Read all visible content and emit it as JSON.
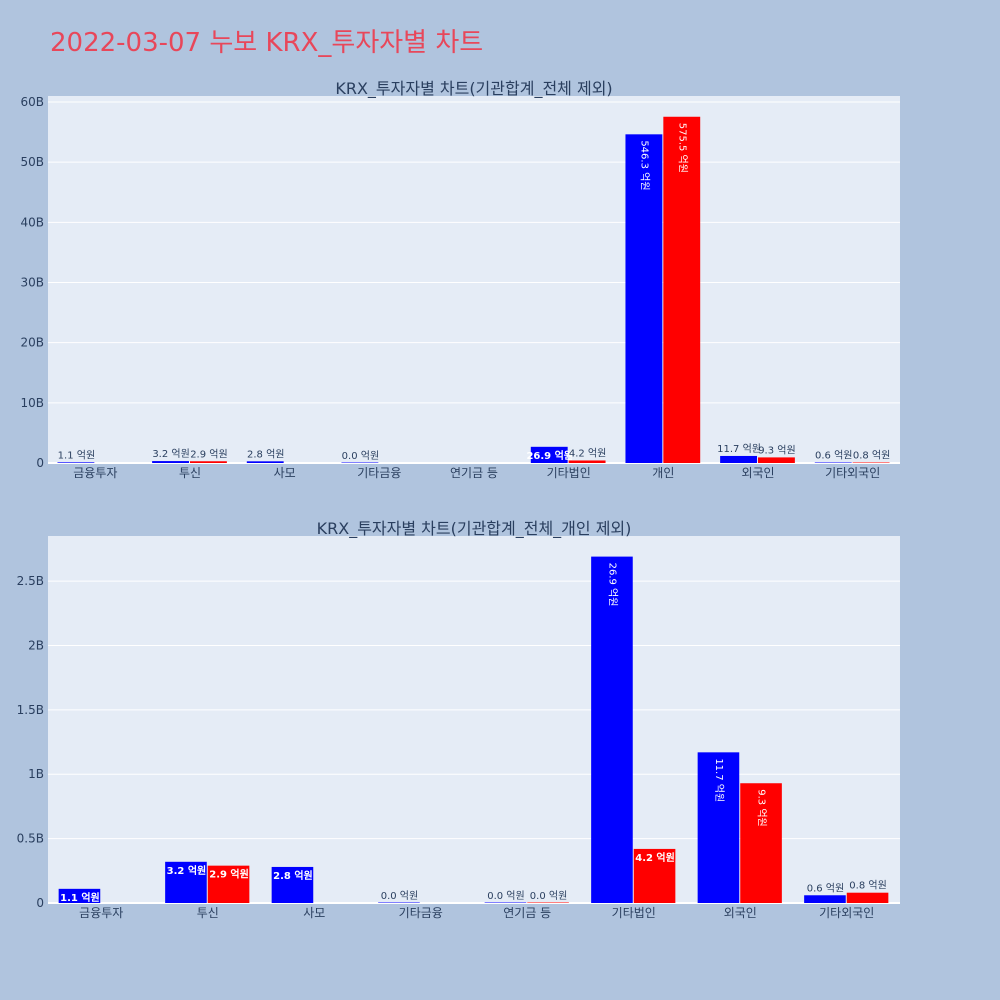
{
  "page": {
    "title": "2022-03-07 누보 KRX_투자자별 차트"
  },
  "colors": {
    "buy": "#0000ff",
    "sell": "#ff0000",
    "plot_bg": "#e5ecf6",
    "page_bg": "#b0c4de",
    "title": "#e8475a"
  },
  "chart_data": [
    {
      "type": "bar",
      "title": "KRX_투자자별 차트(기관합계_전체 제외)",
      "categories": [
        "금융투자",
        "투신",
        "사모",
        "기타금융",
        "연기금 등",
        "기타법인",
        "개인",
        "외국인",
        "기타외국인"
      ],
      "series": [
        {
          "color": "#0000ff",
          "values": [
            110000000,
            320000000,
            280000000,
            0,
            null,
            2690000000,
            54630000000,
            1170000000,
            60000000
          ],
          "labels": [
            "1.1 억원",
            "3.2 억원",
            "2.8 억원",
            "0.0 억원",
            "",
            "26.9 억원",
            "546.3 억원",
            "11.7 억원",
            "0.6 억원"
          ]
        },
        {
          "color": "#ff0000",
          "values": [
            null,
            290000000,
            null,
            null,
            null,
            420000000,
            57550000000,
            930000000,
            80000000
          ],
          "labels": [
            "",
            "2.9 억원",
            "",
            "",
            "",
            "4.2 억원",
            "575.5 억원",
            "9.3 억원",
            "0.8 억원"
          ]
        }
      ],
      "ylim": [
        0,
        61000000000
      ],
      "yticks": [
        0,
        10000000000,
        20000000000,
        30000000000,
        40000000000,
        50000000000,
        60000000000
      ],
      "ytick_labels": [
        "0",
        "10B",
        "20B",
        "30B",
        "40B",
        "50B",
        "60B"
      ],
      "grid": true
    },
    {
      "type": "bar",
      "title": "KRX_투자자별 차트(기관합계_전체_개인 제외)",
      "categories": [
        "금융투자",
        "투신",
        "사모",
        "기타금융",
        "연기금 등",
        "기타법인",
        "외국인",
        "기타외국인"
      ],
      "series": [
        {
          "color": "#0000ff",
          "values": [
            110000000,
            320000000,
            280000000,
            0,
            0,
            2690000000,
            1170000000,
            60000000
          ],
          "labels": [
            "1.1 억원",
            "3.2 억원",
            "2.8 억원",
            "0.0 억원",
            "0.0 억원",
            "26.9 억원",
            "11.7 억원",
            "0.6 억원"
          ]
        },
        {
          "color": "#ff0000",
          "values": [
            null,
            290000000,
            null,
            null,
            0,
            420000000,
            930000000,
            80000000
          ],
          "labels": [
            "",
            "2.9 억원",
            "",
            "",
            "0.0 억원",
            "4.2 억원",
            "9.3 억원",
            "0.8 억원"
          ]
        }
      ],
      "ylim": [
        0,
        2850000000
      ],
      "yticks": [
        0,
        500000000,
        1000000000,
        1500000000,
        2000000000,
        2500000000
      ],
      "ytick_labels": [
        "0",
        "0.5B",
        "1B",
        "1.5B",
        "2B",
        "2.5B"
      ],
      "grid": true
    }
  ]
}
